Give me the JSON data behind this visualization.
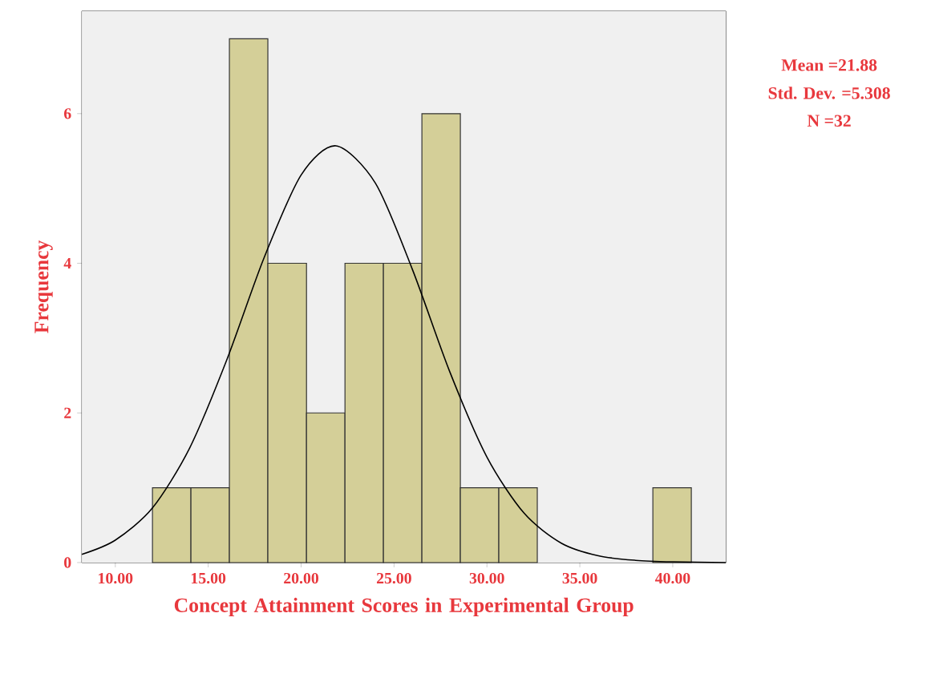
{
  "chart_data": {
    "type": "histogram",
    "xlabel": "Concept Attainment Scores in Experimental Group",
    "ylabel": "Frequency",
    "bins": [
      12,
      14.07,
      16.14,
      18.21,
      20.29,
      22.36,
      24.43,
      26.5,
      28.57,
      30.64,
      32.71,
      34.79,
      36.86,
      38.93,
      41
    ],
    "values": [
      1,
      1,
      7,
      4,
      2,
      4,
      4,
      6,
      1,
      1,
      0,
      0,
      0,
      1
    ],
    "color": "#d4cf98",
    "series": [
      {
        "type": "line",
        "color": "#000000",
        "x": [
          8.2,
          10,
          12,
          14,
          16,
          18,
          20,
          21.88,
          24,
          26,
          28,
          30,
          32,
          34,
          36,
          38,
          40,
          42.86
        ],
        "values": [
          0.11,
          0.3,
          0.73,
          1.53,
          2.71,
          4.07,
          5.18,
          5.57,
          5.07,
          3.91,
          2.55,
          1.41,
          0.66,
          0.26,
          0.09,
          0.03,
          0.01,
          0
        ]
      }
    ],
    "xlim": [
      8.2,
      42.86
    ],
    "ylim": [
      0,
      7.37
    ],
    "xticks": [
      {
        "value": 10,
        "label": "10.00"
      },
      {
        "value": 15,
        "label": "15.00"
      },
      {
        "value": 20,
        "label": "20.00"
      },
      {
        "value": 25,
        "label": "25.00"
      },
      {
        "value": 30,
        "label": "30.00"
      },
      {
        "value": 35,
        "label": "35.00"
      },
      {
        "value": 40,
        "label": "40.00"
      }
    ],
    "yticks": [
      0,
      2,
      4,
      6
    ],
    "grid": false,
    "annotations": [
      "Mean =21.88",
      "Std. Dev. =5.308",
      "N =32"
    ]
  }
}
